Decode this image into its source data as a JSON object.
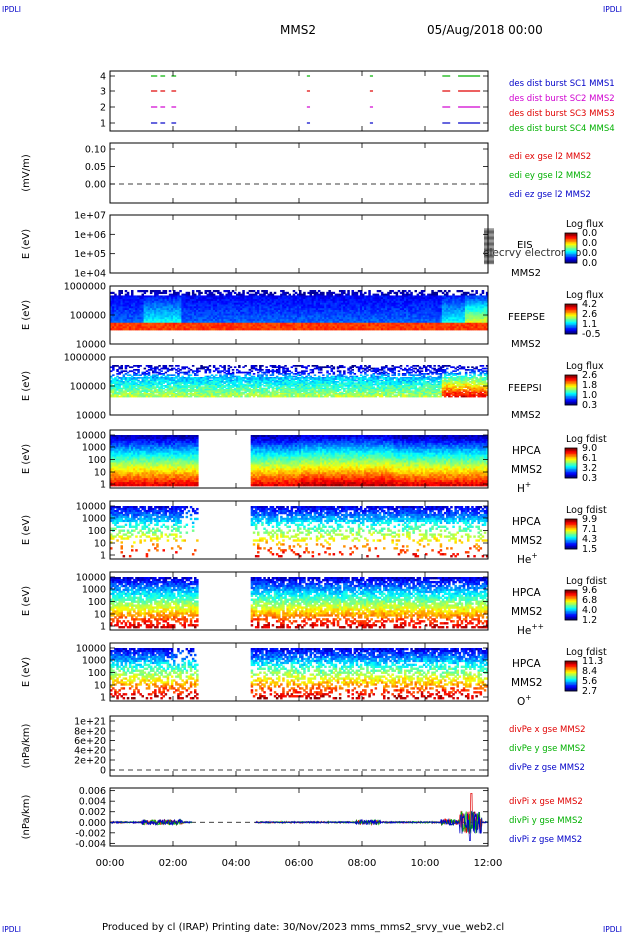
{
  "corner": {
    "tl": "IPDLI",
    "tr": "IPDLI",
    "bl": "IPDLI",
    "br": "IPDLI"
  },
  "header": {
    "title": "MMS2",
    "date": "05/Aug/2018 00:00"
  },
  "footer": {
    "text": "Produced by cl (IRAP)   Printing date: 30/Nov/2023   mms_mms2_srvy_vue_web2.cl"
  },
  "colors": {
    "mms1": "#0000c8",
    "mms2": "#d000d0",
    "mms3": "#e00000",
    "mms4": "#00b000",
    "red": "#e00000",
    "green": "#00b000",
    "blue": "#0000c8"
  },
  "chart_data": {
    "type": "stacked-timeseries",
    "x_ticks": [
      "00:00",
      "02:00",
      "04:00",
      "06:00",
      "08:00",
      "10:00",
      "12:00"
    ],
    "x_range_hours": [
      0,
      12
    ],
    "panels": [
      {
        "id": "burst",
        "yticks": [
          "4",
          "3",
          "2",
          "1"
        ],
        "legend": [
          "des dist burst SC1 MMS1",
          "des dist burst SC2 MMS2",
          "des dist burst SC3 MMS3",
          "des dist burst SC4 MMS4"
        ],
        "intervals_hours": [
          [
            1.3,
            1.5
          ],
          [
            1.6,
            1.75
          ],
          [
            1.95,
            2.1
          ],
          [
            6.25,
            6.35
          ],
          [
            8.25,
            8.35
          ],
          [
            10.55,
            10.8
          ],
          [
            11.05,
            11.75
          ]
        ]
      },
      {
        "id": "edi",
        "ylabel": "(mV/m)",
        "yticks": [
          "0.10",
          "0.05",
          "0.00"
        ],
        "legend": [
          "edi ex gse l2 MMS2",
          "edi ey gse l2 MMS2",
          "edi ez gse l2 MMS2"
        ]
      },
      {
        "id": "eis",
        "ylabel": "E (eV)",
        "yticks": [
          "1e+07",
          "1e+06",
          "1e+05",
          "1e+04"
        ],
        "side": [
          "EIS",
          "MMS2"
        ],
        "overlay": "elecrvy electron to",
        "cbar_title": "Log flux",
        "cbar_ticks": [
          "0.0",
          "0.0",
          "0.0",
          "0.0"
        ]
      },
      {
        "id": "feepse",
        "ylabel": "E (eV)",
        "yticks": [
          "1000000",
          "100000",
          "10000"
        ],
        "side": [
          "FEEPSE",
          "MMS2"
        ],
        "cbar_title": "Log flux",
        "cbar_ticks": [
          "4.2",
          "2.6",
          "1.1",
          "-0.5"
        ]
      },
      {
        "id": "feepsi",
        "ylabel": "E (eV)",
        "yticks": [
          "1000000",
          "100000",
          "10000"
        ],
        "side": [
          "FEEPSI",
          "MMS2"
        ],
        "cbar_title": "Log flux",
        "cbar_ticks": [
          "2.6",
          "1.8",
          "1.0",
          "0.3"
        ]
      },
      {
        "id": "hpca_h",
        "ylabel": "E (eV)",
        "yticks": [
          "10000",
          "1000",
          "100",
          "10",
          "1"
        ],
        "side": [
          "HPCA",
          "MMS2"
        ],
        "species": "H",
        "sup": "+",
        "cbar_title": "Log fdist",
        "cbar_ticks": [
          "9.0",
          "6.1",
          "3.2",
          "0.3"
        ],
        "gap_hours": [
          2.75,
          4.45
        ]
      },
      {
        "id": "hpca_he",
        "ylabel": "E (eV)",
        "yticks": [
          "10000",
          "1000",
          "100",
          "10",
          "1"
        ],
        "side": [
          "HPCA",
          "MMS2"
        ],
        "species": "He",
        "sup": "+",
        "cbar_title": "Log fdist",
        "cbar_ticks": [
          "9.9",
          "7.1",
          "4.3",
          "1.5"
        ],
        "gap_hours": [
          2.75,
          4.45
        ]
      },
      {
        "id": "hpca_hepp",
        "ylabel": "E (eV)",
        "yticks": [
          "10000",
          "1000",
          "100",
          "10",
          "1"
        ],
        "side": [
          "HPCA",
          "MMS2"
        ],
        "species": "He",
        "sup": "++",
        "cbar_title": "Log fdist",
        "cbar_ticks": [
          "9.6",
          "6.8",
          "4.0",
          "1.2"
        ],
        "gap_hours": [
          2.75,
          4.45
        ]
      },
      {
        "id": "hpca_o",
        "ylabel": "E (eV)",
        "yticks": [
          "10000",
          "1000",
          "100",
          "10",
          "1"
        ],
        "side": [
          "HPCA",
          "MMS2"
        ],
        "species": "O",
        "sup": "+",
        "cbar_title": "Log fdist",
        "cbar_ticks": [
          "11.3",
          "8.4",
          "5.6",
          "2.7"
        ],
        "gap_hours": [
          2.75,
          4.45
        ]
      },
      {
        "id": "divpe",
        "ylabel": "(nPa/km)",
        "yticks": [
          "1e+21",
          "8e+20",
          "6e+20",
          "4e+20",
          "2e+20",
          "0"
        ],
        "legend": [
          "divPe x gse MMS2",
          "divPe y gse MMS2",
          "divPe z gse MMS2"
        ]
      },
      {
        "id": "divpi",
        "ylabel": "(nPa/km)",
        "yticks": [
          "0.006",
          "0.004",
          "0.002",
          "0.000",
          "-0.002",
          "-0.004"
        ],
        "yrange": [
          -0.0045,
          0.0065
        ],
        "legend": [
          "divPi x gse MMS2",
          "divPi y gse MMS2",
          "divPi z gse MMS2"
        ]
      }
    ]
  }
}
